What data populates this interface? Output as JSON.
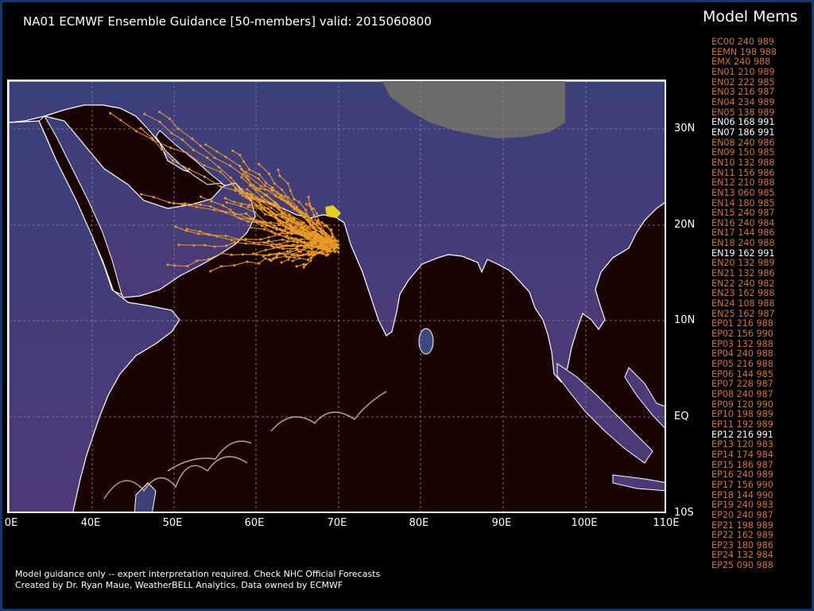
{
  "title": "NA01 ECMWF Ensemble Guidance [50-members] valid: 2015060800",
  "members_title": "Model Mems",
  "members": [
    {
      "label": "EC00 240 989",
      "hl": false
    },
    {
      "label": "EEMN 198 988",
      "hl": false
    },
    {
      "label": "EMX 240 988",
      "hl": false
    },
    {
      "label": "EN01 210 989",
      "hl": false
    },
    {
      "label": "EN02 222 985",
      "hl": false
    },
    {
      "label": "EN03 216 987",
      "hl": false
    },
    {
      "label": "EN04 234 989",
      "hl": false
    },
    {
      "label": "EN05 138 989",
      "hl": false
    },
    {
      "label": "EN06 168 991",
      "hl": true
    },
    {
      "label": "EN07 186 991",
      "hl": true
    },
    {
      "label": "EN08 240 986",
      "hl": false
    },
    {
      "label": "EN09 150 985",
      "hl": false
    },
    {
      "label": "EN10 132 988",
      "hl": false
    },
    {
      "label": "EN11 156 986",
      "hl": false
    },
    {
      "label": "EN12 210 988",
      "hl": false
    },
    {
      "label": "EN13 060 985",
      "hl": false
    },
    {
      "label": "EN14 180 985",
      "hl": false
    },
    {
      "label": "EN15 240 987",
      "hl": false
    },
    {
      "label": "EN16 240 984",
      "hl": false
    },
    {
      "label": "EN17 144 986",
      "hl": false
    },
    {
      "label": "EN18 240 988",
      "hl": false
    },
    {
      "label": "EN19 162 991",
      "hl": true
    },
    {
      "label": "EN20 132 989",
      "hl": false
    },
    {
      "label": "EN21 132 986",
      "hl": false
    },
    {
      "label": "EN22 240 982",
      "hl": false
    },
    {
      "label": "EN23 162 988",
      "hl": false
    },
    {
      "label": "EN24 108 988",
      "hl": false
    },
    {
      "label": "EN25 162 987",
      "hl": false
    },
    {
      "label": "EP01 216 988",
      "hl": false
    },
    {
      "label": "EP02 156 990",
      "hl": false
    },
    {
      "label": "EP03 132 988",
      "hl": false
    },
    {
      "label": "EP04 240 988",
      "hl": false
    },
    {
      "label": "EP05 216 988",
      "hl": false
    },
    {
      "label": "EP06 144 985",
      "hl": false
    },
    {
      "label": "EP07 228 987",
      "hl": false
    },
    {
      "label": "EP08 240 987",
      "hl": false
    },
    {
      "label": "EP09 120 990",
      "hl": false
    },
    {
      "label": "EP10 198 989",
      "hl": false
    },
    {
      "label": "EP11 192 989",
      "hl": false
    },
    {
      "label": "EP12 216 991",
      "hl": true
    },
    {
      "label": "EP13 120 983",
      "hl": false
    },
    {
      "label": "EP14 174 984",
      "hl": false
    },
    {
      "label": "EP15 186 987",
      "hl": false
    },
    {
      "label": "EP16 240 989",
      "hl": false
    },
    {
      "label": "EP17 156 990",
      "hl": false
    },
    {
      "label": "EP18 144 990",
      "hl": false
    },
    {
      "label": "EP19 240 983",
      "hl": false
    },
    {
      "label": "EP20 240 987",
      "hl": false
    },
    {
      "label": "EP21 198 989",
      "hl": false
    },
    {
      "label": "EP22 162 989",
      "hl": false
    },
    {
      "label": "EP23 180 986",
      "hl": false
    },
    {
      "label": "EP24 132 984",
      "hl": false
    },
    {
      "label": "EP25 090 988",
      "hl": false
    }
  ],
  "lat_labels": [
    "30N",
    "20N",
    "10N",
    "EQ",
    "10S"
  ],
  "lon_labels": [
    "0E",
    "40E",
    "50E",
    "60E",
    "70E",
    "80E",
    "90E",
    "100E",
    "110E"
  ],
  "footer_line1": "Model guidance only -- expert interpretation required.  Check NHC Official Forecasts",
  "footer_line2": "Created by Dr. Ryan Maue, WeatherBELL Analytics.  Data owned by ECMWF",
  "colors": {
    "ocean": "#1a0303",
    "land_low": "#4a3570",
    "land_high": "#2a3a6e",
    "tibet": "#6a6a6a",
    "track": "#e89a25",
    "highlight_track": "#e8d020",
    "member_text": "#d4762a",
    "frame": "#14386e"
  }
}
